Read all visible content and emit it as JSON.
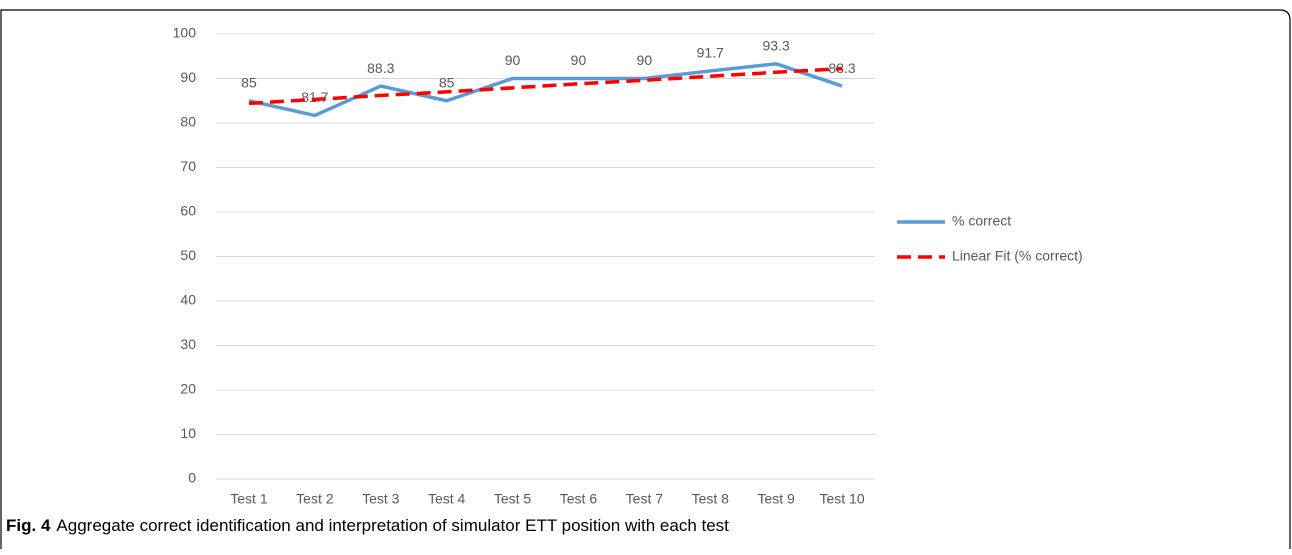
{
  "chart_data": {
    "type": "line",
    "categories": [
      "Test 1",
      "Test 2",
      "Test 3",
      "Test 4",
      "Test 5",
      "Test 6",
      "Test 7",
      "Test 8",
      "Test 9",
      "Test 10"
    ],
    "series": [
      {
        "name": "% correct",
        "color": "#5b9bd5",
        "dashed": false,
        "data_labels": true,
        "values": [
          85,
          81.7,
          88.3,
          85,
          90,
          90,
          90,
          91.7,
          93.3,
          88.3
        ]
      },
      {
        "name": "Linear Fit (% correct)",
        "color": "#ff0000",
        "dashed": true,
        "data_labels": false,
        "values": [
          84.4,
          85.3,
          86.2,
          87.0,
          87.9,
          88.8,
          89.6,
          90.5,
          91.4,
          92.2
        ]
      }
    ],
    "ylim": [
      0,
      100
    ],
    "yticks": [
      0,
      10,
      20,
      30,
      40,
      50,
      60,
      70,
      80,
      90,
      100
    ],
    "grid": true,
    "legend": "right",
    "caption_label": "Fig. 4",
    "caption": "Aggregate correct identification and interpretation of simulator ETT position with each test"
  }
}
